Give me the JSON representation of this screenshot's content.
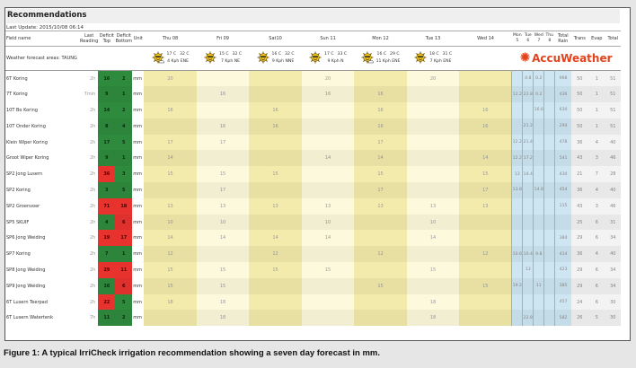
{
  "title": "Recommendations",
  "last_update": "Last Update: 2015/10/08 06:14",
  "headers": {
    "field": "Field name",
    "last_reading": "Last Reading",
    "deficit_top": "Deficit Top",
    "deficit_bottom": "Deficit Bottom",
    "unit": "Unit",
    "days": [
      "Thu 08",
      "Fri 09",
      "Sat10",
      "Sun 11",
      "Mon 12",
      "Tue 13",
      "Wed 14"
    ],
    "rain_days": [
      "Mon 5",
      "Tue 6",
      "Wed 7",
      "Thu 8"
    ],
    "total_rain": "Total Rain",
    "trans": "Trans",
    "evap": "Evap",
    "total": "Total"
  },
  "weather_area": "Weather forecast areas: TAUNG",
  "weather": [
    {
      "icon": "sun-cloud-icon",
      "min": "17 C",
      "max": "32 C",
      "wind": "4 Kph ENE"
    },
    {
      "icon": "sun-icon",
      "min": "15 C",
      "max": "32 C",
      "wind": "7 Kph NE"
    },
    {
      "icon": "sun-icon",
      "min": "16 C",
      "max": "32 C",
      "wind": "9 Kph NNE"
    },
    {
      "icon": "sun-icon",
      "min": "17 C",
      "max": "33 C",
      "wind": "9 Kph N"
    },
    {
      "icon": "sun-cloud-icon",
      "min": "16 C",
      "max": "29 C",
      "wind": "11 Kph ENE"
    },
    {
      "icon": "sun-icon",
      "min": "18 C",
      "max": "31 C",
      "wind": "7 Kph ENE"
    }
  ],
  "brand": "AccuWeather",
  "colors": {
    "deficit_ok": "#2e8b3e",
    "deficit_high": "#e8322e",
    "brand": "#e2421c",
    "rain": "#cde6f2"
  },
  "rows": [
    {
      "name": "6T Koring",
      "last": "2h",
      "top": "16",
      "top_status": "ok",
      "bottom": "2",
      "bottom_status": "ok",
      "unit": "mm",
      "days": [
        "20",
        "",
        "",
        "20",
        "",
        "20",
        ""
      ],
      "rain": [
        "",
        "4.8",
        "0.2",
        ""
      ],
      "total_rain": "968",
      "trans": "50",
      "evap": "1",
      "total": "51"
    },
    {
      "name": "7T Koring",
      "last": "7min",
      "top": "9",
      "top_status": "ok",
      "bottom": "1",
      "bottom_status": "ok",
      "unit": "mm",
      "days": [
        "",
        "16",
        "",
        "16",
        "16",
        "",
        ""
      ],
      "rain": [
        "12.2",
        "22.8",
        "0.2",
        ""
      ],
      "total_rain": "436",
      "trans": "50",
      "evap": "1",
      "total": "51"
    },
    {
      "name": "10T Bo Koring",
      "last": "2h",
      "top": "14",
      "top_status": "ok",
      "bottom": "2",
      "bottom_status": "ok",
      "unit": "mm",
      "days": [
        "16",
        "",
        "16",
        "",
        "16",
        "",
        "16"
      ],
      "rain": [
        "",
        "",
        "16.6",
        ""
      ],
      "total_rain": "630",
      "trans": "50",
      "evap": "1",
      "total": "51"
    },
    {
      "name": "10T Onder Koring",
      "last": "2h",
      "top": "8",
      "top_status": "ok",
      "bottom": "4",
      "bottom_status": "ok",
      "unit": "mm",
      "days": [
        "",
        "16",
        "16",
        "",
        "16",
        "",
        "16"
      ],
      "rain": [
        "",
        "21.2",
        "",
        ""
      ],
      "total_rain": "294",
      "trans": "50",
      "evap": "1",
      "total": "51"
    },
    {
      "name": "Klein Wiper Koring",
      "last": "2h",
      "top": "17",
      "top_status": "ok",
      "bottom": "5",
      "bottom_status": "ok",
      "unit": "mm",
      "days": [
        "17",
        "17",
        "",
        "",
        "17",
        "",
        ""
      ],
      "rain": [
        "12.2",
        "21.4",
        "",
        ""
      ],
      "total_rain": "478",
      "trans": "36",
      "evap": "4",
      "total": "40"
    },
    {
      "name": "Groot Wiper Koring",
      "last": "2h",
      "top": "9",
      "top_status": "ok",
      "bottom": "1",
      "bottom_status": "ok",
      "unit": "mm",
      "days": [
        "14",
        "",
        "",
        "14",
        "14",
        "",
        "14"
      ],
      "rain": [
        "12.2",
        "17.2",
        "",
        ""
      ],
      "total_rain": "541",
      "trans": "43",
      "evap": "3",
      "total": "46"
    },
    {
      "name": "SP2 Jong Lusern",
      "last": "2h",
      "top": "36",
      "top_status": "high",
      "bottom": "3",
      "bottom_status": "ok",
      "unit": "mm",
      "days": [
        "15",
        "15",
        "15",
        "",
        "15",
        "",
        "15"
      ],
      "rain": [
        "13",
        "14.4",
        "",
        ""
      ],
      "total_rain": "430",
      "trans": "21",
      "evap": "7",
      "total": "28"
    },
    {
      "name": "SP2 Koring",
      "last": "2h",
      "top": "3",
      "top_status": "ok",
      "bottom": "5",
      "bottom_status": "ok",
      "unit": "mm",
      "days": [
        "",
        "17",
        "",
        "",
        "17",
        "",
        "17"
      ],
      "rain": [
        "13.8",
        "",
        "14.8",
        ""
      ],
      "total_rain": "454",
      "trans": "36",
      "evap": "4",
      "total": "40"
    },
    {
      "name": "SP2 Groenvoer",
      "last": "2h",
      "top": "71",
      "top_status": "high",
      "bottom": "18",
      "bottom_status": "high",
      "unit": "mm",
      "days": [
        "13",
        "13",
        "13",
        "13",
        "13",
        "13",
        "13"
      ],
      "rain": [
        "",
        "",
        "",
        ""
      ],
      "total_rain": "115",
      "trans": "43",
      "evap": "3",
      "total": "46"
    },
    {
      "name": "SP5 SKUIF",
      "last": "2h",
      "top": "4",
      "top_status": "ok",
      "bottom": "6",
      "bottom_status": "high",
      "unit": "mm",
      "days": [
        "10",
        "10",
        "",
        "10",
        "",
        "10",
        ""
      ],
      "rain": [
        "",
        "",
        "",
        ""
      ],
      "total_rain": "",
      "trans": "25",
      "evap": "6",
      "total": "31"
    },
    {
      "name": "SP6 Jong Weiding",
      "last": "2h",
      "top": "19",
      "top_status": "high",
      "bottom": "17",
      "bottom_status": "high",
      "unit": "mm",
      "days": [
        "14",
        "14",
        "14",
        "14",
        "",
        "14",
        ""
      ],
      "rain": [
        "",
        "",
        "",
        ""
      ],
      "total_rain": "384",
      "trans": "29",
      "evap": "6",
      "total": "34"
    },
    {
      "name": "SP7 Koring",
      "last": "2h",
      "top": "7",
      "top_status": "ok",
      "bottom": "1",
      "bottom_status": "ok",
      "unit": "mm",
      "days": [
        "12",
        "",
        "12",
        "",
        "12",
        "",
        "12"
      ],
      "rain": [
        "10.6",
        "10.4",
        "9.8",
        ""
      ],
      "total_rain": "414",
      "trans": "36",
      "evap": "4",
      "total": "40"
    },
    {
      "name": "SP8 Jong Weiding",
      "last": "2h",
      "top": "29",
      "top_status": "high",
      "bottom": "11",
      "bottom_status": "high",
      "unit": "mm",
      "days": [
        "15",
        "15",
        "15",
        "15",
        "",
        "15",
        ""
      ],
      "rain": [
        "",
        "13",
        "",
        ""
      ],
      "total_rain": "423",
      "trans": "29",
      "evap": "6",
      "total": "34"
    },
    {
      "name": "SP9 Jong Weiding",
      "last": "2h",
      "top": "16",
      "top_status": "ok",
      "bottom": "6",
      "bottom_status": "high",
      "unit": "mm",
      "days": [
        "15",
        "15",
        "",
        "",
        "15",
        "",
        "15"
      ],
      "rain": [
        "19.2",
        "",
        "11",
        ""
      ],
      "total_rain": "385",
      "trans": "29",
      "evap": "6",
      "total": "34"
    },
    {
      "name": "6T Lusern Teerpad",
      "last": "2h",
      "top": "22",
      "top_status": "high",
      "bottom": "5",
      "bottom_status": "ok",
      "unit": "mm",
      "days": [
        "18",
        "18",
        "",
        "",
        "",
        "18",
        ""
      ],
      "rain": [
        "",
        "",
        "",
        ""
      ],
      "total_rain": "457",
      "trans": "24",
      "evap": "6",
      "total": "30"
    },
    {
      "name": "6T Lusern Watertenk",
      "last": "7h",
      "top": "11",
      "top_status": "ok",
      "bottom": "2",
      "bottom_status": "ok",
      "unit": "mm",
      "days": [
        "",
        "18",
        "",
        "",
        "",
        "18",
        ""
      ],
      "rain": [
        "",
        "22.8",
        "",
        ""
      ],
      "total_rain": "582",
      "trans": "26",
      "evap": "5",
      "total": "30"
    }
  ],
  "caption": "Figure 1: A typical IrriCheck irrigation recommendation showing a seven day forecast in mm."
}
